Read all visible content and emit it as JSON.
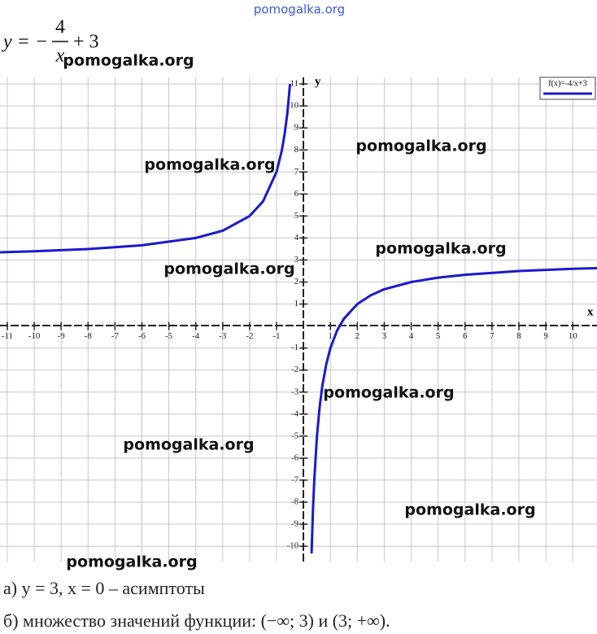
{
  "chart_data": {
    "type": "line",
    "formula": {
      "lhs": "y = −",
      "numerator": "4",
      "denominator": "x",
      "rest": "+ 3"
    },
    "x_label": "x",
    "y_label": "y",
    "xlim": [
      -11.27,
      10.9
    ],
    "ylim": [
      -10.7,
      11.3
    ],
    "xticks": [
      -11,
      -10,
      -9,
      -8,
      -7,
      -6,
      -5,
      -4,
      -3,
      -2,
      -1,
      1,
      2,
      3,
      4,
      5,
      6,
      7,
      8,
      9,
      10
    ],
    "yticks": [
      -10,
      -9,
      -8,
      -7,
      -6,
      -5,
      -4,
      -3,
      -2,
      -1,
      1,
      2,
      3,
      4,
      5,
      6,
      7,
      8,
      9,
      10,
      11
    ],
    "grid": true,
    "legend": "top-right",
    "series": [
      {
        "name": "f(x)=-4/x+3",
        "color": "#1a1acc",
        "x": [
          -11.27,
          -10,
          -8,
          -6,
          -4,
          -3,
          -2,
          -1.5,
          -1,
          -0.8,
          -0.7,
          -0.6,
          -0.5,
          null,
          0.3,
          0.35,
          0.4,
          0.5,
          0.6,
          0.7,
          0.85,
          1,
          1.25,
          1.5,
          2,
          2.5,
          3,
          4,
          5,
          6,
          8,
          10,
          10.9
        ],
        "values": [
          3.35,
          3.4,
          3.5,
          3.67,
          4,
          4.33,
          5,
          5.67,
          7,
          8,
          8.71,
          9.67,
          11,
          null,
          -10.33,
          -8.43,
          -7,
          -5,
          -3.67,
          -2.71,
          -1.71,
          -1,
          -0.2,
          0.33,
          1,
          1.4,
          1.67,
          2,
          2.2,
          2.33,
          2.5,
          2.6,
          2.63
        ]
      }
    ],
    "notes": [
      "а) y = 3,     x = 0 – асимптоты",
      "б) множество значений функции: (−∞; 3) и (3;  +∞)."
    ],
    "watermarks": [
      "pomogalka.org",
      "pomogalka.org",
      "pomogalka.org",
      "pomogalka.org",
      "pomogalka.org",
      "pomogalka.org",
      "pomogalka.org",
      "pomogalka.org",
      "pomogalka.org",
      "pomogalka.org"
    ]
  }
}
